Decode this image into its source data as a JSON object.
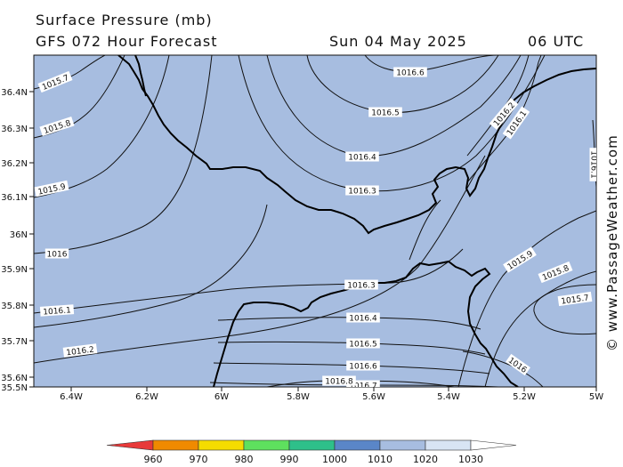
{
  "header": {
    "line1": "Surface Pressure (mb)",
    "model": "GFS 072 Hour Forecast",
    "date": "Sun 04 May 2025",
    "time": "06 UTC"
  },
  "watermark": "© www.PassageWeather.com",
  "map": {
    "background_color": "#a7bde0",
    "contours": [
      {
        "value": "1016.6",
        "label": "1016.6"
      },
      {
        "value": "1016.5",
        "label": "1016.5"
      },
      {
        "value": "1016.4",
        "label": "1016.4"
      },
      {
        "value": "1016.3",
        "label": "1016.3"
      },
      {
        "value": "1016.2",
        "label": "1016.2"
      },
      {
        "value": "1016.1",
        "label": "1016.1"
      },
      {
        "value": "1015.7",
        "label": "1015.7"
      },
      {
        "value": "1015.8",
        "label": "1015.8"
      },
      {
        "value": "1015.9",
        "label": "1015.9"
      },
      {
        "value": "1016",
        "label": "1016"
      },
      {
        "value": "1016.3",
        "label": "1016.3"
      },
      {
        "value": "1016.4",
        "label": "1016.4"
      },
      {
        "value": "1016.5",
        "label": "1016.5"
      },
      {
        "value": "1016.6",
        "label": "1016.6"
      },
      {
        "value": "1016.7",
        "label": "1016.7"
      },
      {
        "value": "1016.8",
        "label": "1016.8"
      },
      {
        "value": "1016.2",
        "label": "1016.2"
      },
      {
        "value": "1016.1",
        "label": "1016.1"
      },
      {
        "value": "1016",
        "label": "1016"
      },
      {
        "value": "1015.9",
        "label": "1015.9"
      },
      {
        "value": "1015.8",
        "label": "1015.8"
      },
      {
        "value": "1015.7",
        "label": "1015.7"
      },
      {
        "value": "1016",
        "label": "1016"
      },
      {
        "value": "1016.1",
        "label": "1016.1"
      }
    ],
    "lon_ticks": [
      "6.4W",
      "6.2W",
      "6W",
      "5.8W",
      "5.6W",
      "5.4W",
      "5.2W",
      "5W"
    ],
    "lat_ticks": [
      "36.4N",
      "36.3N",
      "36.2N",
      "36.1N",
      "36N",
      "35.9N",
      "35.8N",
      "35.7N",
      "35.6N",
      "35.5N"
    ]
  },
  "legend": {
    "labels": [
      "960",
      "970",
      "980",
      "990",
      "1000",
      "1010",
      "1020",
      "1030"
    ],
    "colors": [
      "#e83a3a",
      "#f08a00",
      "#f5dc00",
      "#5ee05e",
      "#2ec08a",
      "#5a86c8",
      "#a7bde0",
      "#d8e4f4",
      "#ffffff"
    ]
  }
}
